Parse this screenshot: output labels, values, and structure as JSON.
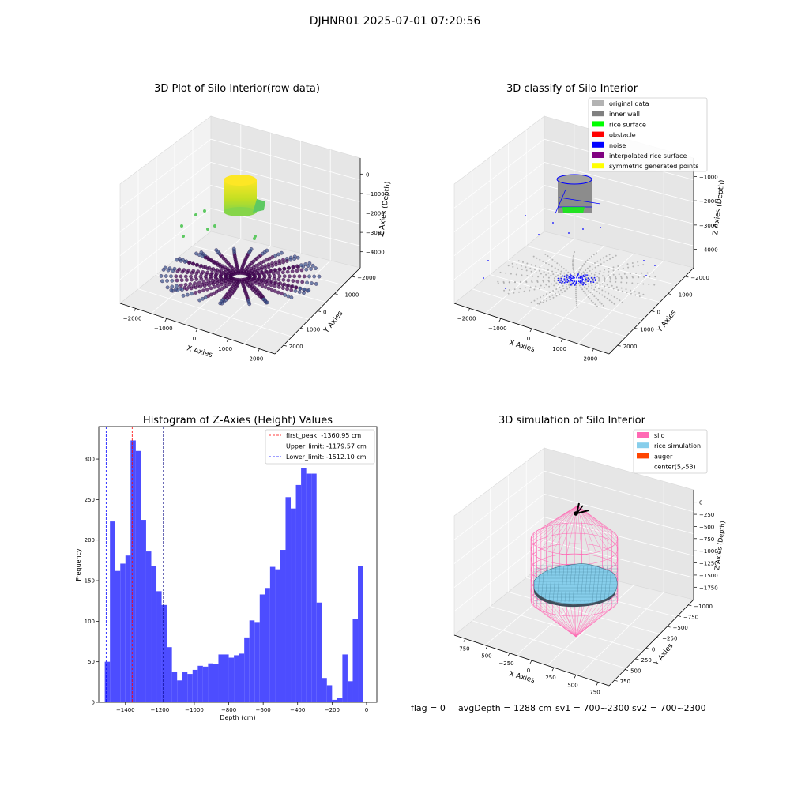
{
  "figure": {
    "suptitle": "DJHNR01 2025-07-01 07:20:56",
    "footer": {
      "flag": "flag = 0",
      "avg": "avgDepth = 1288 cm",
      "sv1": "sv1 = 700~2300",
      "sv2": "sv2 = 700~2300"
    }
  },
  "chart_data": [
    {
      "type": "scatter",
      "projection": "3d",
      "title": "3D Plot of Silo Interior(row data)",
      "xlabel": "X Axies",
      "ylabel": "Y Axies",
      "zlabel": "Z Axies (Depth)",
      "xticks": [
        "−2000",
        "−1000",
        "0",
        "1000",
        "2000"
      ],
      "yticks": [
        "−2000",
        "−1000",
        "0",
        "1000",
        "2000"
      ],
      "zticks": [
        "0",
        "−1000",
        "−2000",
        "−3000",
        "−4000"
      ],
      "xlim": [
        -2500,
        2500
      ],
      "ylim": [
        -2500,
        2500
      ],
      "zlim": [
        -4500,
        0
      ],
      "colormap": "viridis",
      "colors": {
        "low": "#440154",
        "mid": "#3b528b",
        "high": "#fde725",
        "green": "#5ec962"
      }
    },
    {
      "type": "scatter",
      "projection": "3d",
      "title": "3D classify of Silo Interior",
      "xlabel": "X Axies",
      "ylabel": "Y Axies",
      "zlabel": "Z Axies (Depth)",
      "xticks": [
        "−2000",
        "−1000",
        "0",
        "1000",
        "2000"
      ],
      "yticks": [
        "−2000",
        "−1000",
        "0",
        "1000",
        "2000"
      ],
      "zticks": [
        "−1000",
        "−2000",
        "−3000",
        "−4000"
      ],
      "legend_position": "top-right",
      "legend": [
        {
          "label": "original data",
          "color": "#b3b3b3"
        },
        {
          "label": "inner wall",
          "color": "#808080"
        },
        {
          "label": "rice surface",
          "color": "#00ff00"
        },
        {
          "label": "obstacle",
          "color": "#ff0000"
        },
        {
          "label": "noise",
          "color": "#0000ff"
        },
        {
          "label": "interpolated rice surface",
          "color": "#800080"
        },
        {
          "label": "symmetric generated points",
          "color": "#ffff00"
        }
      ]
    },
    {
      "type": "bar",
      "title": "Histogram of Z-Axies (Height) Values",
      "xlabel": "Depth (cm)",
      "ylabel": "Frequency",
      "bin_edges_start": -1520,
      "bin_width": 30,
      "values": [
        50,
        223,
        162,
        171,
        181,
        323,
        310,
        225,
        186,
        168,
        137,
        120,
        68,
        38,
        27,
        37,
        35,
        40,
        45,
        44,
        48,
        47,
        59,
        59,
        55,
        58,
        60,
        80,
        101,
        99,
        133,
        141,
        167,
        164,
        188,
        253,
        239,
        268,
        289,
        282,
        282,
        123,
        30,
        21,
        3,
        5,
        59,
        26,
        103,
        168
      ],
      "xlim": [
        -1555,
        60
      ],
      "ylim": [
        0,
        340
      ],
      "xticks": [
        -1400,
        -1200,
        -1000,
        -800,
        -600,
        -400,
        -200,
        0
      ],
      "xtick_labels": [
        "−1400",
        "−1200",
        "−1000",
        "−800",
        "−600",
        "−400",
        "−200",
        "0"
      ],
      "yticks": [
        0,
        50,
        100,
        150,
        200,
        250,
        300
      ],
      "bar_color": "#4d4dff",
      "lines": [
        {
          "label": "first_peak: -1360.95 cm",
          "x": -1360.95,
          "color": "#ff0000"
        },
        {
          "label": "Upper_limit: -1179.57 cm",
          "x": -1179.57,
          "color": "#000080"
        },
        {
          "label": "Lower_limit: -1512.10 cm",
          "x": -1512.1,
          "color": "#0000ff"
        }
      ],
      "legend_position": "top-right"
    },
    {
      "type": "surface",
      "projection": "3d",
      "title": "3D simulation of Silo Interior",
      "xlabel": "X Axies",
      "ylabel": "Y Axies",
      "zlabel": "Z Axies (Depth)",
      "xticks": [
        "−750",
        "−500",
        "−250",
        "0",
        "250",
        "500",
        "750"
      ],
      "yticks": [
        "−1000",
        "−750",
        "−500",
        "−250",
        "0",
        "250",
        "500",
        "750"
      ],
      "zticks": [
        "0",
        "−250",
        "−500",
        "−750",
        "−1000",
        "−1250",
        "−1500",
        "−1750"
      ],
      "legend_position": "top-right",
      "legend": [
        {
          "label": "silo",
          "color": "#ff69b4"
        },
        {
          "label": "rice simulation",
          "color": "#87ceeb"
        },
        {
          "label": "auger",
          "color": "#ff4500"
        },
        {
          "label": "center(5,-53)",
          "color": "#ffffff"
        }
      ]
    }
  ]
}
